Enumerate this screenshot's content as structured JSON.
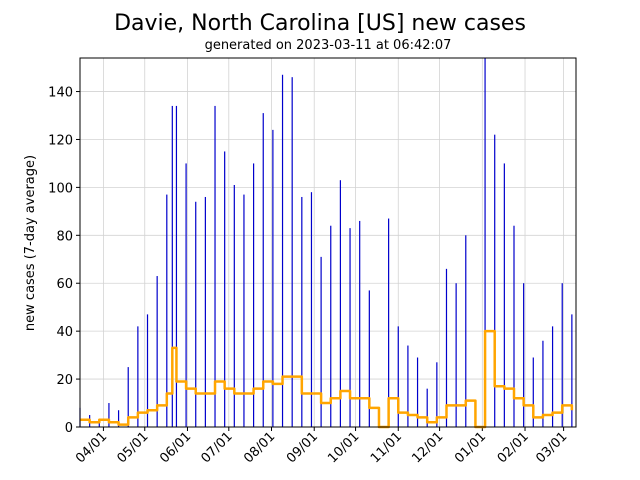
{
  "chart_data": {
    "type": "bar_line",
    "title": "Davie, North Carolina [US] new cases",
    "subtitle": "generated on 2023-03-11 at 06:42:07",
    "y_label": "new cases (7-day average)",
    "x": [
      "03/15",
      "03/22",
      "03/29",
      "04/05",
      "04/12",
      "04/19",
      "04/26",
      "05/03",
      "05/10",
      "05/17",
      "05/21",
      "05/24",
      "05/31",
      "06/07",
      "06/14",
      "06/21",
      "06/28",
      "07/05",
      "07/12",
      "07/19",
      "07/26",
      "08/02",
      "08/09",
      "08/16",
      "08/23",
      "08/30",
      "09/06",
      "09/13",
      "09/20",
      "09/27",
      "10/04",
      "10/11",
      "10/18",
      "10/25",
      "11/01",
      "11/08",
      "11/15",
      "11/22",
      "11/29",
      "12/06",
      "12/13",
      "12/20",
      "12/27",
      "01/03",
      "01/10",
      "01/17",
      "01/24",
      "01/31",
      "02/07",
      "02/14",
      "02/21",
      "02/28",
      "03/07"
    ],
    "series": [
      {
        "type": "bar",
        "color": "#0000cc",
        "values": [
          8,
          5,
          3,
          10,
          7,
          25,
          42,
          47,
          63,
          97,
          134,
          134,
          110,
          94,
          96,
          134,
          115,
          101,
          97,
          110,
          131,
          124,
          147,
          146,
          96,
          98,
          71,
          84,
          103,
          83,
          86,
          57,
          0,
          87,
          42,
          34,
          29,
          16,
          27,
          66,
          60,
          80,
          0,
          154,
          122,
          110,
          84,
          60,
          29,
          36,
          42,
          60,
          47
        ]
      },
      {
        "type": "line",
        "color": "#ffa500",
        "drawstyle": "steps-post",
        "values": [
          3,
          2,
          3,
          2,
          1,
          4,
          6,
          7,
          9,
          14,
          33,
          19,
          16,
          14,
          14,
          19,
          16,
          14,
          14,
          16,
          19,
          18,
          21,
          21,
          14,
          14,
          10,
          12,
          15,
          12,
          12,
          8,
          0,
          12,
          6,
          5,
          4,
          2,
          4,
          9,
          9,
          11,
          0,
          40,
          17,
          16,
          12,
          9,
          4,
          5,
          6,
          9,
          7
        ]
      }
    ],
    "xlim": [
      "03/15",
      "03/10"
    ],
    "xticks": [
      "04/01",
      "05/01",
      "06/01",
      "07/01",
      "08/01",
      "09/01",
      "10/01",
      "11/01",
      "12/01",
      "01/01",
      "02/01",
      "03/01"
    ],
    "ylim": [
      0,
      154
    ],
    "yticks": [
      0,
      20,
      40,
      60,
      80,
      100,
      120,
      140
    ],
    "grid": true
  }
}
